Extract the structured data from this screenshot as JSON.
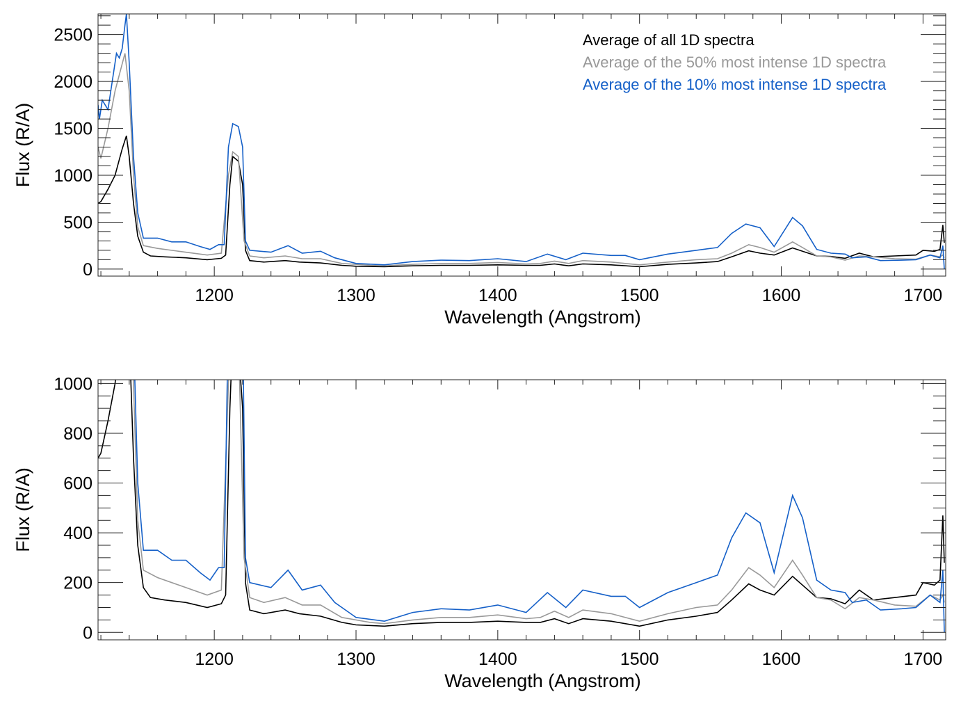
{
  "chart_data": [
    {
      "type": "line",
      "xlabel": "Wavelength (Angstrom)",
      "ylabel": "Flux (R/A)",
      "xlim": [
        1118,
        1716
      ],
      "ylim": [
        -75,
        2720
      ],
      "xticks": [
        1200,
        1300,
        1400,
        1500,
        1600,
        1700
      ],
      "yticks": [
        0,
        500,
        1000,
        1500,
        2000,
        2500
      ],
      "legend_position": "top-right",
      "series_ref": "series"
    },
    {
      "type": "line",
      "xlabel": "Wavelength (Angstrom)",
      "ylabel": "Flux (R/A)",
      "xlim": [
        1118,
        1716
      ],
      "ylim": [
        -30,
        1015
      ],
      "xticks": [
        1200,
        1300,
        1400,
        1500,
        1600,
        1700
      ],
      "yticks": [
        0,
        200,
        400,
        600,
        800,
        1000
      ],
      "series_ref": "series"
    }
  ],
  "series": [
    {
      "name": "Average of all 1D spectra",
      "color": "#000000",
      "x": [
        1118,
        1120,
        1125,
        1130,
        1135,
        1138,
        1140,
        1143,
        1146,
        1150,
        1155,
        1165,
        1180,
        1195,
        1205,
        1208,
        1211,
        1213,
        1217,
        1220,
        1222,
        1225,
        1235,
        1250,
        1260,
        1275,
        1290,
        1300,
        1320,
        1340,
        1360,
        1380,
        1400,
        1420,
        1430,
        1440,
        1450,
        1460,
        1480,
        1500,
        1520,
        1540,
        1555,
        1565,
        1577,
        1585,
        1595,
        1608,
        1615,
        1625,
        1635,
        1645,
        1655,
        1665,
        1680,
        1695,
        1700,
        1708,
        1712,
        1714,
        1715
      ],
      "y": [
        700,
        720,
        850,
        1000,
        1280,
        1420,
        1200,
        700,
        350,
        180,
        140,
        130,
        120,
        100,
        115,
        150,
        900,
        1200,
        1150,
        900,
        200,
        90,
        75,
        90,
        75,
        65,
        40,
        30,
        25,
        35,
        40,
        40,
        45,
        40,
        40,
        55,
        35,
        55,
        45,
        25,
        50,
        65,
        80,
        130,
        195,
        170,
        150,
        225,
        190,
        140,
        135,
        115,
        170,
        130,
        140,
        150,
        200,
        190,
        210,
        470,
        280
      ]
    },
    {
      "name": "Average of the 50% most intense 1D spectra",
      "color": "#999999",
      "x": [
        1118,
        1120,
        1125,
        1130,
        1137,
        1140,
        1143,
        1146,
        1150,
        1160,
        1175,
        1195,
        1205,
        1210,
        1213,
        1217,
        1221,
        1225,
        1235,
        1250,
        1262,
        1275,
        1290,
        1310,
        1320,
        1340,
        1360,
        1380,
        1400,
        1420,
        1430,
        1440,
        1450,
        1460,
        1480,
        1500,
        1520,
        1540,
        1555,
        1565,
        1577,
        1585,
        1595,
        1608,
        1615,
        1625,
        1635,
        1645,
        1655,
        1665,
        1680,
        1695,
        1705,
        1712,
        1714,
        1715
      ],
      "y": [
        1300,
        1180,
        1500,
        1900,
        2300,
        1900,
        1000,
        450,
        250,
        220,
        190,
        150,
        170,
        1000,
        1250,
        1200,
        300,
        140,
        120,
        140,
        110,
        110,
        60,
        40,
        35,
        50,
        60,
        60,
        70,
        55,
        60,
        85,
        60,
        90,
        75,
        45,
        75,
        100,
        110,
        170,
        260,
        230,
        180,
        290,
        230,
        140,
        130,
        95,
        140,
        130,
        110,
        105,
        150,
        130,
        150,
        120
      ]
    },
    {
      "name": "Average of the 10% most intense 1D spectra",
      "color": "#1560c8",
      "x": [
        1118,
        1119,
        1121,
        1125,
        1128,
        1131,
        1133,
        1135,
        1137,
        1138,
        1140,
        1143,
        1146,
        1150,
        1160,
        1170,
        1180,
        1190,
        1197,
        1203,
        1207,
        1210,
        1213,
        1217,
        1220,
        1222,
        1225,
        1240,
        1252,
        1262,
        1275,
        1285,
        1300,
        1320,
        1340,
        1360,
        1380,
        1400,
        1420,
        1435,
        1448,
        1460,
        1480,
        1490,
        1500,
        1520,
        1540,
        1555,
        1565,
        1575,
        1585,
        1595,
        1608,
        1615,
        1625,
        1635,
        1645,
        1650,
        1660,
        1670,
        1685,
        1695,
        1705,
        1712,
        1714,
        1715
      ],
      "y": [
        1750,
        1600,
        1800,
        1700,
        2000,
        2300,
        2250,
        2350,
        2600,
        2720,
        2200,
        1200,
        600,
        330,
        330,
        290,
        290,
        240,
        210,
        260,
        260,
        1300,
        1550,
        1520,
        1300,
        300,
        200,
        180,
        250,
        170,
        190,
        120,
        60,
        45,
        80,
        95,
        90,
        110,
        80,
        160,
        100,
        170,
        145,
        145,
        100,
        160,
        200,
        230,
        380,
        480,
        440,
        240,
        550,
        460,
        210,
        170,
        160,
        120,
        130,
        90,
        95,
        100,
        150,
        120,
        250,
        0
      ]
    }
  ]
}
